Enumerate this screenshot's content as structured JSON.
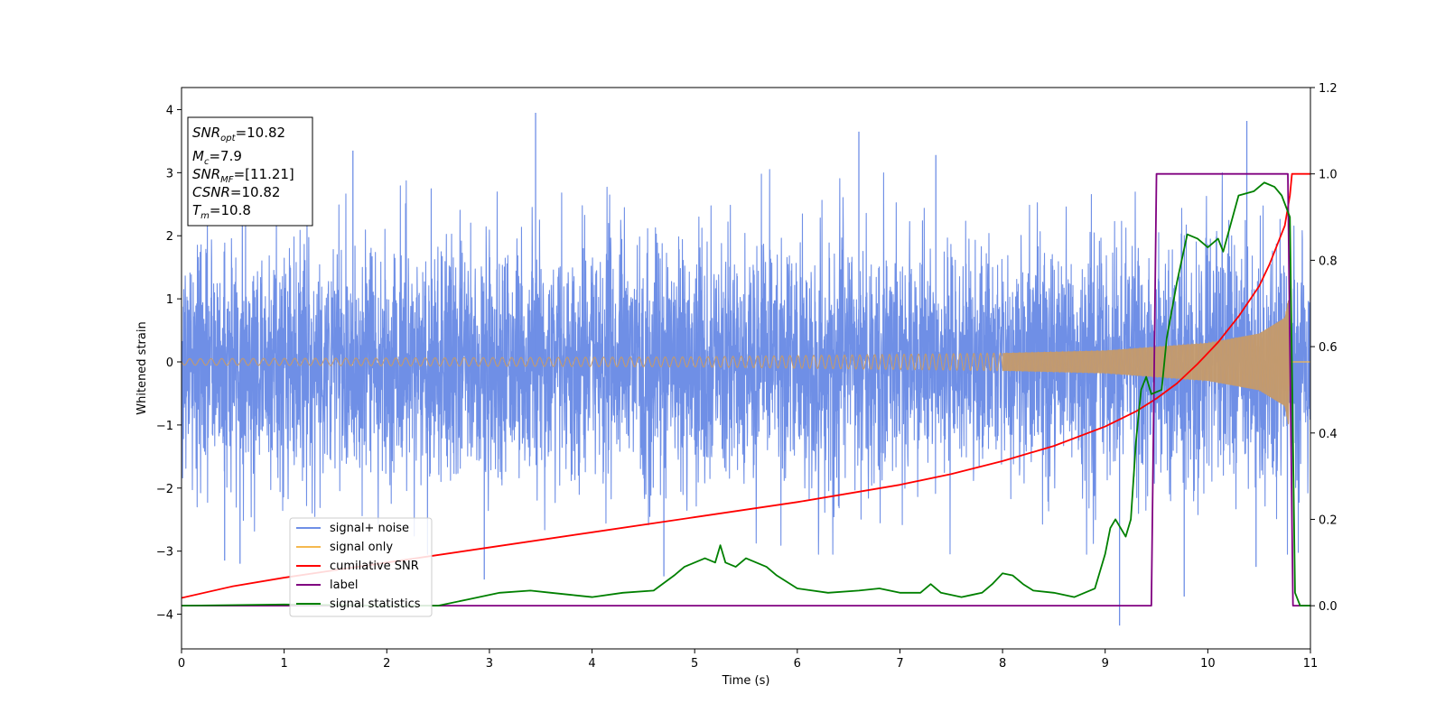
{
  "chart_data": {
    "type": "line",
    "xlabel": "Time (s)",
    "ylabel": "Whitened strain",
    "xlim": [
      0,
      11
    ],
    "ylim": [
      -4.55,
      4.35
    ],
    "y2lim": [
      -0.1,
      1.2
    ],
    "x_ticks": [
      "0",
      "1",
      "2",
      "3",
      "4",
      "5",
      "6",
      "7",
      "8",
      "9",
      "10",
      "11"
    ],
    "y_ticks": [
      "4",
      "3",
      "2",
      "1",
      "0",
      "−1",
      "−2",
      "−3",
      "−4"
    ],
    "y2_ticks": [
      "1.2",
      "1.0",
      "0.8",
      "0.6",
      "0.4",
      "0.2",
      "0.0"
    ],
    "info_box": {
      "snr_opt": {
        "symbol": "SNR",
        "sub": "opt",
        "value": "=10.82"
      },
      "mc": {
        "symbol": "M",
        "sub": "c",
        "value": "=7.9"
      },
      "snr_mf": {
        "symbol": "SNR",
        "sub": "MF",
        "value": "=[11.21]"
      },
      "csnr": {
        "symbol": "CSNR",
        "value": "=10.82"
      },
      "tm": {
        "symbol": "T",
        "sub": "m",
        "value": "=10.8"
      }
    },
    "legend": {
      "placement": "lower-left",
      "entries": [
        "signal+ noise",
        "signal only",
        "cumilative SNR",
        "label",
        "signal statistics"
      ]
    },
    "colors": {
      "noise": "#6f8fe6",
      "signal": "#f5b94f",
      "signal_fill": "#c39a6e",
      "snr": "#ff0000",
      "label": "#800080",
      "stat": "#008000"
    },
    "series": [
      {
        "name": "signal+ noise",
        "axis": "left",
        "description": "whitened noise, std ~1, spikes up to about 3.9",
        "noise_std": 1.0,
        "t_start": 0,
        "t_end": 11,
        "spikes": [
          {
            "x": 3.45,
            "y": 3.95
          },
          {
            "x": 10.38,
            "y": 3.82
          },
          {
            "x": 9.14,
            "y": -4.18
          },
          {
            "x": 0.42,
            "y": -3.15
          },
          {
            "x": 0.57,
            "y": -3.2
          },
          {
            "x": 2.95,
            "y": -3.45
          },
          {
            "x": 4.7,
            "y": -3.4
          },
          {
            "x": 10.47,
            "y": -3.25
          },
          {
            "x": 9.77,
            "y": -3.72
          },
          {
            "x": 6.6,
            "y": 3.65
          },
          {
            "x": 1.67,
            "y": 3.35
          },
          {
            "x": 7.35,
            "y": 3.28
          }
        ]
      },
      {
        "name": "signal only",
        "axis": "left",
        "description": "chirp, amplitude grows toward merger",
        "envelope": [
          [
            0,
            0.05
          ],
          [
            5,
            0.08
          ],
          [
            8,
            0.14
          ],
          [
            9,
            0.18
          ],
          [
            10,
            0.3
          ],
          [
            10.5,
            0.45
          ],
          [
            10.75,
            0.7
          ],
          [
            10.79,
            1.05
          ],
          [
            10.8,
            0
          ]
        ],
        "merger_time": 10.8
      },
      {
        "name": "cumilative SNR",
        "axis": "right",
        "x": [
          0,
          0.5,
          1,
          2,
          3,
          4,
          5,
          6,
          7,
          7.5,
          8,
          8.5,
          9,
          9.3,
          9.5,
          9.7,
          9.9,
          10.1,
          10.3,
          10.5,
          10.6,
          10.7,
          10.75,
          10.8,
          10.82,
          11
        ],
        "y": [
          0.018,
          0.045,
          0.065,
          0.1,
          0.135,
          0.17,
          0.205,
          0.24,
          0.28,
          0.305,
          0.335,
          0.37,
          0.415,
          0.45,
          0.48,
          0.515,
          0.56,
          0.61,
          0.67,
          0.74,
          0.79,
          0.85,
          0.88,
          0.95,
          1.0,
          1.0
        ]
      },
      {
        "name": "label",
        "axis": "right",
        "x": [
          0,
          9.45,
          9.5,
          10.78,
          10.83,
          11
        ],
        "y": [
          0,
          0,
          1,
          1,
          0,
          0
        ]
      },
      {
        "name": "signal statistics",
        "axis": "right",
        "x": [
          0,
          1,
          2,
          2.5,
          2.8,
          3.1,
          3.4,
          3.6,
          3.8,
          4.0,
          4.3,
          4.6,
          4.8,
          4.9,
          5.0,
          5.1,
          5.2,
          5.25,
          5.3,
          5.4,
          5.5,
          5.6,
          5.7,
          5.8,
          6.0,
          6.3,
          6.6,
          6.8,
          7.0,
          7.2,
          7.3,
          7.4,
          7.6,
          7.7,
          7.8,
          7.9,
          8.0,
          8.1,
          8.2,
          8.3,
          8.5,
          8.7,
          8.9,
          9.0,
          9.05,
          9.1,
          9.2,
          9.25,
          9.3,
          9.35,
          9.4,
          9.45,
          9.55,
          9.6,
          9.7,
          9.8,
          9.9,
          10.0,
          10.1,
          10.15,
          10.3,
          10.45,
          10.55,
          10.65,
          10.72,
          10.8,
          10.85,
          10.9,
          11
        ],
        "y": [
          0.0,
          0.003,
          0.0,
          0.0,
          0.015,
          0.03,
          0.035,
          0.03,
          0.025,
          0.02,
          0.03,
          0.035,
          0.07,
          0.09,
          0.1,
          0.11,
          0.1,
          0.14,
          0.1,
          0.09,
          0.11,
          0.1,
          0.09,
          0.07,
          0.04,
          0.03,
          0.035,
          0.04,
          0.03,
          0.03,
          0.05,
          0.03,
          0.02,
          0.025,
          0.03,
          0.05,
          0.075,
          0.07,
          0.05,
          0.035,
          0.03,
          0.02,
          0.04,
          0.12,
          0.18,
          0.2,
          0.16,
          0.2,
          0.38,
          0.5,
          0.53,
          0.49,
          0.5,
          0.62,
          0.75,
          0.86,
          0.85,
          0.83,
          0.85,
          0.82,
          0.95,
          0.96,
          0.98,
          0.97,
          0.95,
          0.9,
          0.03,
          0.0,
          0.0
        ]
      }
    ]
  }
}
